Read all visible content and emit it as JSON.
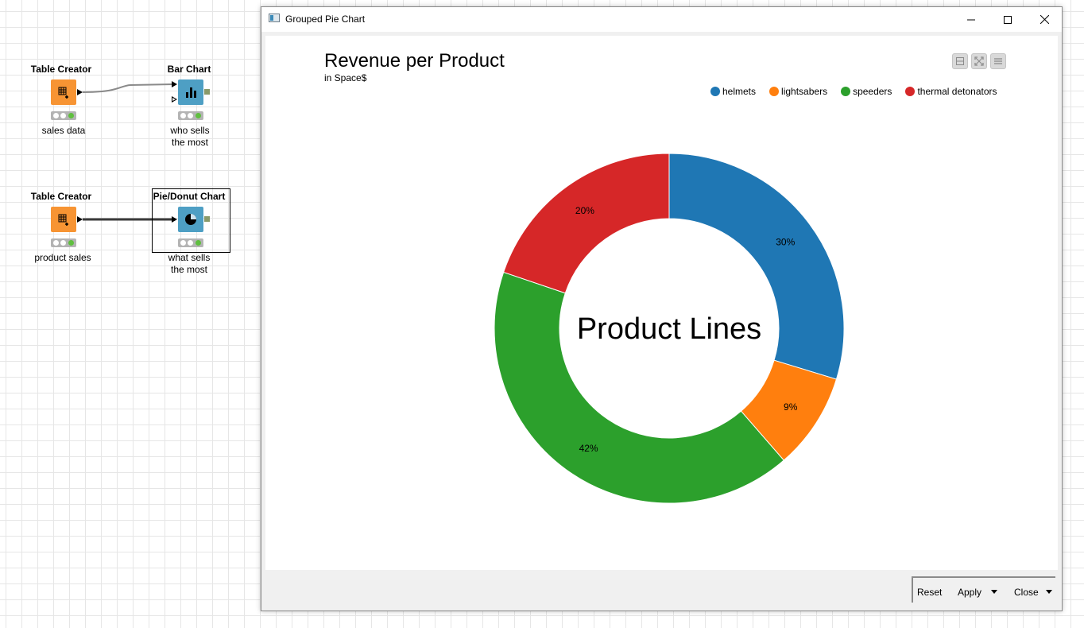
{
  "workflow": {
    "nodes": [
      {
        "title": "Table Creator",
        "label": "sales data",
        "icon": "table-creator-icon",
        "color": "#f79433"
      },
      {
        "title": "Bar Chart",
        "label": "who sells\nthe most",
        "icon": "bar-chart-icon",
        "color": "#4e9fc4"
      },
      {
        "title": "Table Creator",
        "label": "product sales",
        "icon": "table-creator-icon",
        "color": "#f79433"
      },
      {
        "title": "Pie/Donut Chart",
        "label": "what sells\nthe most",
        "icon": "pie-chart-icon",
        "color": "#4e9fc4"
      }
    ]
  },
  "window": {
    "title": "Grouped Pie Chart",
    "controls": [
      "minimize-icon",
      "maximize-icon",
      "close-icon"
    ]
  },
  "chart_toolbar": [
    "selection-icon",
    "fullscreen-icon",
    "menu-icon"
  ],
  "chart_data": {
    "type": "pie",
    "subtype": "donut",
    "title": "Revenue per Product",
    "subtitle": "in Space$",
    "center_label": "Product Lines",
    "legend_position": "top-right",
    "series": [
      {
        "name": "helmets",
        "value": 30,
        "label": "30%",
        "color": "#1f77b4"
      },
      {
        "name": "lightsabers",
        "value": 9,
        "label": "9%",
        "color": "#ff7f0e"
      },
      {
        "name": "speeders",
        "value": 42,
        "label": "42%",
        "color": "#2ca02c"
      },
      {
        "name": "thermal detonators",
        "value": 20,
        "label": "20%",
        "color": "#d62728"
      }
    ]
  },
  "footer": {
    "reset_label": "Reset",
    "apply_label": "Apply",
    "close_label": "Close"
  }
}
